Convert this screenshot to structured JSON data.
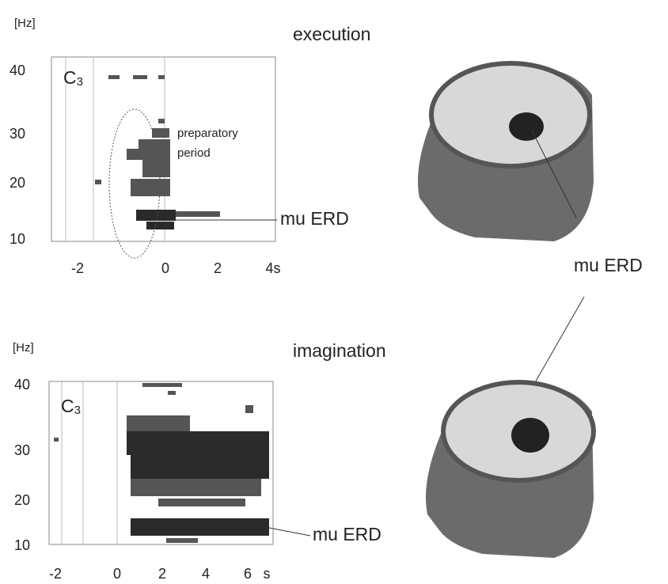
{
  "panels": [
    {
      "title": "execution",
      "y_unit": "[Hz]",
      "electrode": {
        "letter": "C",
        "index": "3"
      },
      "y_tick_labels": [
        "40",
        "30",
        "20",
        "10"
      ],
      "x_tick_labels": [
        "-2",
        "0",
        "2",
        "4s"
      ],
      "annotation": [
        "preparatory",
        "period"
      ],
      "erd_label": "mu ERD"
    },
    {
      "title": "imagination",
      "y_unit": "[Hz]",
      "electrode": {
        "letter": "C",
        "index": "3"
      },
      "y_tick_labels": [
        "40",
        "30",
        "20",
        "10"
      ],
      "x_tick_labels": [
        "-2",
        "0",
        "2",
        "4",
        "6",
        "s"
      ],
      "erd_label": "mu ERD"
    }
  ],
  "head_label": "mu ERD"
}
